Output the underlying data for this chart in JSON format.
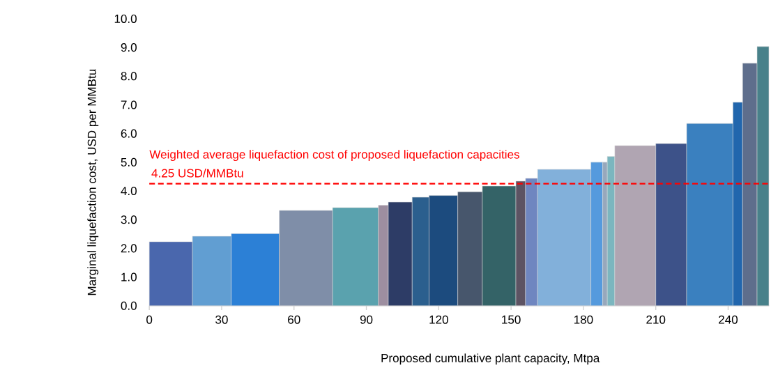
{
  "chart_data": {
    "type": "histogram",
    "xlabel": "Proposed cumulative plant capacity, Mtpa",
    "ylabel": "Marginal liquefaction cost, USD per MMBtu",
    "bins": [
      0,
      17.9,
      34.0,
      53.9,
      76.0,
      95.0,
      99.1,
      109.0,
      116.0,
      127.9,
      138.1,
      152.0,
      156.0,
      161.0,
      183.1,
      188.0,
      189.9,
      193.0,
      210.0,
      222.8,
      242.0,
      246.0,
      252.0,
      256.9
    ],
    "values": [
      2.23,
      2.42,
      2.51,
      3.32,
      3.42,
      3.5,
      3.61,
      3.78,
      3.84,
      3.97,
      4.17,
      4.34,
      4.44,
      4.75,
      5.0,
      5.0,
      5.2,
      5.58,
      5.65,
      6.35,
      7.09,
      8.45,
      9.03
    ],
    "colors": [
      "#4a67ad",
      "#619ed2",
      "#2c80d6",
      "#7f8ea8",
      "#5aa2ae",
      "#9d8ea0",
      "#2d3c66",
      "#2b5f8e",
      "#1c4b7e",
      "#47566c",
      "#346367",
      "#5d5363",
      "#6f86c0",
      "#82b0da",
      "#559add",
      "#97a8bc",
      "#7bb6bf",
      "#b0a5b2",
      "#3d5289",
      "#3a80bf",
      "#2166ad",
      "#5e6e8c",
      "#48818a"
    ],
    "xlim": [
      0,
      257
    ],
    "xticks": [
      0,
      30,
      60,
      90,
      120,
      150,
      180,
      210,
      240
    ],
    "ylim": [
      0,
      10
    ],
    "yticks": [
      {
        "value": 0,
        "label": "0.0"
      },
      {
        "value": 1,
        "label": "1.0"
      },
      {
        "value": 2,
        "label": "2.0"
      },
      {
        "value": 3,
        "label": "3.0"
      },
      {
        "value": 4,
        "label": "4.0"
      },
      {
        "value": 5,
        "label": "5.0"
      },
      {
        "value": 6,
        "label": "6.0"
      },
      {
        "value": 7,
        "label": "7.0"
      },
      {
        "value": 8,
        "label": "8.0"
      },
      {
        "value": 9,
        "label": "9.0"
      },
      {
        "value": 10,
        "label": "10.0"
      }
    ],
    "ref_lines": [
      {
        "axis": "y",
        "value": 4.25,
        "label": "Weighted average liquefaction cost of proposed liquefaction capacities",
        "color": "#ff0000",
        "line_style": "dashed"
      }
    ],
    "annotations": [
      "4.25 USD/MMBtu"
    ],
    "grid": false
  }
}
